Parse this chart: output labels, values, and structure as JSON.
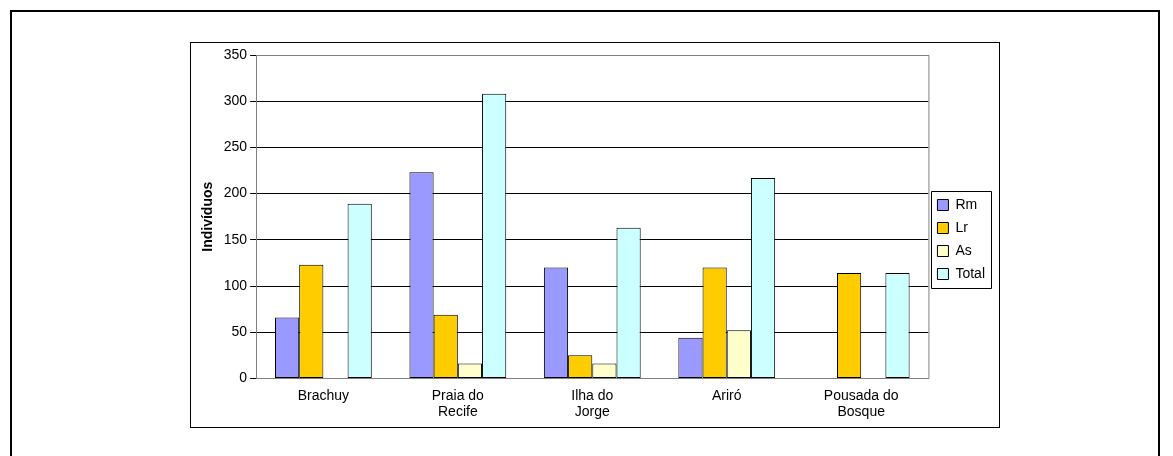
{
  "chart_data": {
    "type": "bar",
    "ylabel": "Indivíduos",
    "categories": [
      "Brachuy",
      "Praia do Recife",
      "Ilha do Jorge",
      "Ariró",
      "Pousada do Bosque"
    ],
    "series": [
      {
        "name": "Rm",
        "color": "#9999ff",
        "values": [
          66,
          223,
          120,
          44,
          null
        ]
      },
      {
        "name": "Lr",
        "color": "#ffcc00",
        "values": [
          123,
          69,
          25,
          120,
          114
        ]
      },
      {
        "name": "As",
        "color": "#ffffcc",
        "values": [
          null,
          16,
          16,
          52,
          null
        ]
      },
      {
        "name": "Total",
        "color": "#ccffff",
        "values": [
          189,
          308,
          163,
          217,
          114
        ]
      }
    ],
    "ylim": [
      0,
      350
    ],
    "yticks": [
      0,
      50,
      100,
      150,
      200,
      250,
      300,
      350
    ],
    "grid": "y",
    "legend": "right"
  }
}
